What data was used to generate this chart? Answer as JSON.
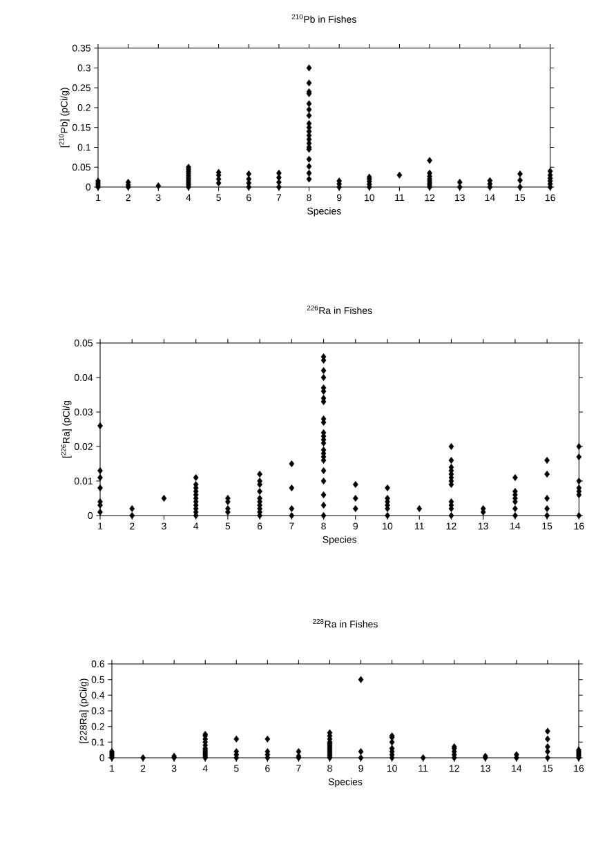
{
  "chart_data": [
    {
      "type": "scatter",
      "title": "$^{210}$Pb in Fishes",
      "xlabel": "Species",
      "ylabel": "[$^{210}$Pb] (pCi/g)",
      "xlim": [
        1,
        16
      ],
      "xticks": [
        1,
        2,
        3,
        4,
        5,
        6,
        7,
        8,
        9,
        10,
        11,
        12,
        13,
        14,
        15,
        16
      ],
      "ylim": [
        0,
        0.35
      ],
      "yticks": [
        0,
        0.05,
        0.1,
        0.15,
        0.2,
        0.25,
        0.3,
        0.35
      ],
      "marker": "diamond",
      "series": [
        {
          "color": "#000000",
          "x": [
            1,
            1,
            1,
            1,
            2,
            2,
            2,
            3,
            4,
            4,
            4,
            4,
            4,
            4,
            4,
            4,
            4,
            4,
            4,
            5,
            5,
            5,
            5,
            6,
            6,
            6,
            6,
            7,
            7,
            7,
            7,
            8,
            8,
            8,
            8,
            8,
            8,
            8,
            8,
            8,
            8,
            8,
            8,
            8,
            8,
            8,
            8,
            8,
            8,
            8,
            9,
            9,
            9,
            10,
            10,
            10,
            10,
            10,
            11,
            12,
            12,
            12,
            12,
            12,
            12,
            12,
            12,
            13,
            13,
            14,
            14,
            14,
            15,
            15,
            15,
            16,
            16,
            16,
            16,
            16,
            16
          ],
          "values": [
            0,
            0.005,
            0.01,
            0.015,
            0,
            0.005,
            0.012,
            0.003,
            0,
            0.005,
            0.01,
            0.015,
            0.02,
            0.025,
            0.03,
            0.035,
            0.04,
            0.045,
            0.05,
            0.01,
            0.02,
            0.03,
            0.037,
            0,
            0.01,
            0.02,
            0.033,
            0,
            0.012,
            0.024,
            0.035,
            0.3,
            0.262,
            0.24,
            0.235,
            0.21,
            0.195,
            0.18,
            0.16,
            0.15,
            0.14,
            0.13,
            0.12,
            0.11,
            0.1,
            0.095,
            0.07,
            0.052,
            0.035,
            0.02,
            0,
            0.008,
            0.015,
            0,
            0.007,
            0.014,
            0.02,
            0.025,
            0.03,
            0,
            0.005,
            0.01,
            0.015,
            0.02,
            0.027,
            0.035,
            0.067,
            0,
            0.012,
            0,
            0.008,
            0.016,
            0,
            0.017,
            0.033,
            0,
            0.008,
            0.015,
            0.022,
            0.03,
            0.04
          ]
        }
      ]
    },
    {
      "type": "scatter",
      "title": "$^{226}$Ra in Fishes",
      "xlabel": "Species",
      "ylabel": "[$^{226}$Ra]  (pCi/g",
      "xlim": [
        1,
        16
      ],
      "xticks": [
        1,
        2,
        3,
        4,
        5,
        6,
        7,
        8,
        9,
        10,
        11,
        12,
        13,
        14,
        15,
        16
      ],
      "ylim": [
        0,
        0.05
      ],
      "yticks": [
        0,
        0.01,
        0.02,
        0.03,
        0.04,
        0.05
      ],
      "marker": "diamond",
      "series": [
        {
          "color": "#000000",
          "x": [
            1,
            1,
            1,
            1,
            1,
            1,
            1,
            2,
            2,
            3,
            4,
            4,
            4,
            4,
            4,
            4,
            4,
            4,
            4,
            4,
            4,
            5,
            5,
            5,
            5,
            6,
            6,
            6,
            6,
            6,
            6,
            6,
            6,
            6,
            6,
            7,
            7,
            7,
            7,
            8,
            8,
            8,
            8,
            8,
            8,
            8,
            8,
            8,
            8,
            8,
            8,
            8,
            8,
            8,
            8,
            8,
            8,
            8,
            8,
            8,
            8,
            8,
            9,
            9,
            9,
            10,
            10,
            10,
            10,
            10,
            10,
            11,
            12,
            12,
            12,
            12,
            12,
            12,
            12,
            12,
            12,
            12,
            12,
            12,
            13,
            13,
            14,
            14,
            14,
            14,
            14,
            14,
            14,
            15,
            15,
            15,
            15,
            15,
            16,
            16,
            16,
            16,
            16,
            16,
            16
          ],
          "values": [
            0.026,
            0.013,
            0.011,
            0.008,
            0.004,
            0.003,
            0.001,
            0,
            0.002,
            0.005,
            0,
            0.001,
            0.002,
            0.003,
            0.004,
            0.005,
            0.006,
            0.007,
            0.008,
            0.009,
            0.011,
            0.001,
            0.002,
            0.004,
            0.005,
            0,
            0.001,
            0.002,
            0.003,
            0.004,
            0.005,
            0.007,
            0.009,
            0.01,
            0.012,
            0,
            0.002,
            0.008,
            0.015,
            0.046,
            0.045,
            0.042,
            0.04,
            0.037,
            0.036,
            0.034,
            0.033,
            0.028,
            0.027,
            0.024,
            0.023,
            0.022,
            0.021,
            0.019,
            0.018,
            0.017,
            0.016,
            0.013,
            0.01,
            0.006,
            0.003,
            0,
            0.009,
            0.005,
            0.002,
            0.008,
            0.005,
            0.004,
            0.003,
            0.002,
            0,
            0.002,
            0.02,
            0.016,
            0.014,
            0.013,
            0.012,
            0.011,
            0.01,
            0.009,
            0.004,
            0.003,
            0.002,
            0,
            0.002,
            0.001,
            0.011,
            0.007,
            0.006,
            0.005,
            0.004,
            0.002,
            0,
            0.016,
            0.012,
            0.005,
            0.002,
            0,
            0.02,
            0.017,
            0.01,
            0.008,
            0.007,
            0.006,
            0
          ]
        }
      ]
    },
    {
      "type": "scatter",
      "title": "$^{228}$Ra in Fishes",
      "xlabel": "Species",
      "ylabel": "[228Ra] (pCi/g)",
      "xlim": [
        1,
        16
      ],
      "xticks": [
        1,
        2,
        3,
        4,
        5,
        6,
        7,
        8,
        9,
        10,
        11,
        12,
        13,
        14,
        15,
        16
      ],
      "ylim": [
        0,
        0.6
      ],
      "yticks": [
        0,
        0.1,
        0.2,
        0.3,
        0.4,
        0.5,
        0.6
      ],
      "marker": "diamond",
      "series": [
        {
          "color": "#000000",
          "x": [
            1,
            1,
            1,
            1,
            1,
            2,
            3,
            3,
            4,
            4,
            4,
            4,
            4,
            4,
            4,
            4,
            4,
            4,
            4,
            4,
            5,
            5,
            5,
            5,
            6,
            6,
            6,
            6,
            7,
            7,
            7,
            8,
            8,
            8,
            8,
            8,
            8,
            8,
            8,
            8,
            8,
            8,
            8,
            8,
            8,
            9,
            9,
            9,
            10,
            10,
            10,
            10,
            10,
            10,
            10,
            11,
            12,
            12,
            12,
            12,
            12,
            13,
            13,
            14,
            14,
            15,
            15,
            15,
            15,
            15,
            16,
            16,
            16,
            16,
            16,
            16
          ],
          "values": [
            0,
            0.01,
            0.02,
            0.03,
            0.04,
            0,
            0,
            0.01,
            0,
            0.01,
            0.02,
            0.03,
            0.04,
            0.05,
            0.06,
            0.08,
            0.1,
            0.12,
            0.14,
            0.15,
            0.12,
            0.04,
            0.02,
            0,
            0.12,
            0.04,
            0.02,
            0,
            0.04,
            0.01,
            0,
            0.16,
            0.14,
            0.12,
            0.1,
            0.09,
            0.08,
            0.07,
            0.06,
            0.05,
            0.04,
            0.03,
            0.02,
            0.01,
            0,
            0.5,
            0.04,
            0,
            0.14,
            0.13,
            0.1,
            0.06,
            0.04,
            0.02,
            0,
            0,
            0.07,
            0.06,
            0.04,
            0.02,
            0,
            0.01,
            0,
            0.02,
            0,
            0.17,
            0.12,
            0.07,
            0.04,
            0,
            0.05,
            0.04,
            0.03,
            0.02,
            0.01,
            0
          ]
        }
      ]
    }
  ]
}
